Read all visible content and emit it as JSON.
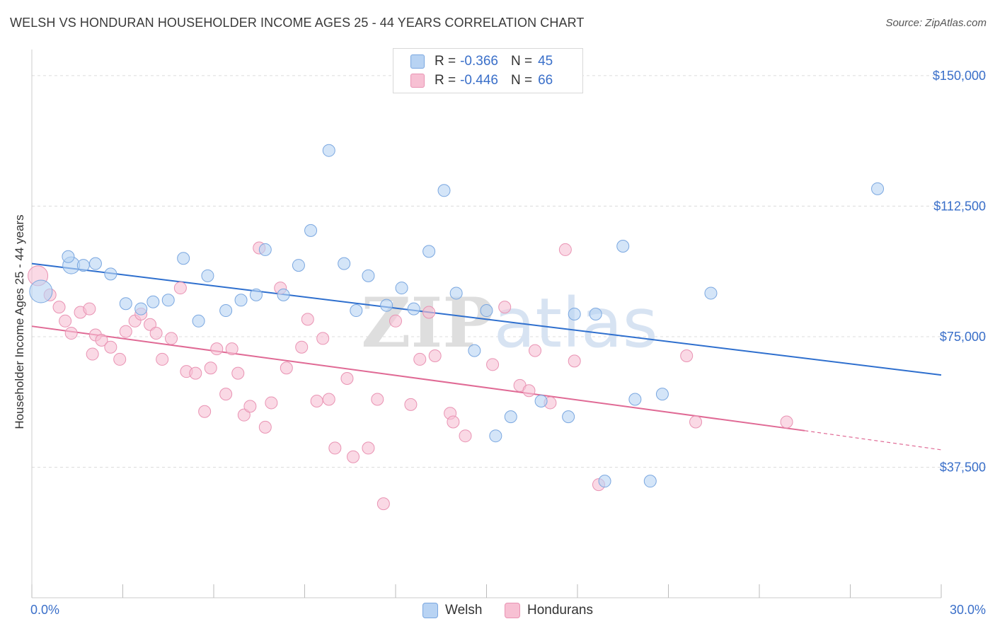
{
  "title": "WELSH VS HONDURAN HOUSEHOLDER INCOME AGES 25 - 44 YEARS CORRELATION CHART",
  "source": "Source: ZipAtlas.com",
  "colors": {
    "welsh_fill": "#b8d3f3",
    "welsh_stroke": "#7aa7e0",
    "welsh_line": "#2e6fce",
    "hond_fill": "#f7c0d3",
    "hond_stroke": "#e993b3",
    "hond_line": "#e06a95",
    "tick_text": "#3a6fc9"
  },
  "legend_top": {
    "welsh": {
      "r_label": "R =",
      "r_value": "-0.366",
      "n_label": "N =",
      "n_value": "45"
    },
    "hondurans": {
      "r_label": "R =",
      "r_value": "-0.446",
      "n_label": "N =",
      "n_value": "66"
    }
  },
  "legend_bottom": {
    "welsh": "Welsh",
    "hondurans": "Hondurans"
  },
  "chart_data": {
    "type": "scatter",
    "xlabel": "",
    "ylabel": "Householder Income Ages 25 - 44 years",
    "xlim": [
      0,
      30
    ],
    "ylim": [
      0,
      157500
    ],
    "x_tick_labels": [
      "0.0%",
      "30.0%"
    ],
    "y_ticks": [
      37500,
      75000,
      112500,
      150000
    ],
    "y_tick_labels": [
      "$37,500",
      "$75,000",
      "$112,500",
      "$150,000"
    ],
    "watermark": "ZIPatlas",
    "series": [
      {
        "name": "Welsh",
        "trend": {
          "x": [
            0,
            30
          ],
          "y": [
            96000,
            64000
          ]
        },
        "points": [
          [
            0.3,
            88000
          ],
          [
            1.3,
            95500
          ],
          [
            1.2,
            98000
          ],
          [
            1.7,
            95500
          ],
          [
            2.1,
            96000
          ],
          [
            2.6,
            93000
          ],
          [
            3.1,
            84500
          ],
          [
            3.6,
            83000
          ],
          [
            4.0,
            85000
          ],
          [
            4.5,
            85500
          ],
          [
            5.0,
            97500
          ],
          [
            5.5,
            79500
          ],
          [
            5.8,
            92500
          ],
          [
            6.4,
            82500
          ],
          [
            6.9,
            85500
          ],
          [
            7.4,
            87000
          ],
          [
            7.7,
            100000
          ],
          [
            8.3,
            87000
          ],
          [
            8.8,
            95500
          ],
          [
            9.2,
            105500
          ],
          [
            9.8,
            128500
          ],
          [
            10.3,
            96000
          ],
          [
            10.7,
            82500
          ],
          [
            11.1,
            92500
          ],
          [
            11.7,
            84000
          ],
          [
            12.2,
            89000
          ],
          [
            12.6,
            83000
          ],
          [
            13.1,
            99500
          ],
          [
            13.6,
            117000
          ],
          [
            14.0,
            87500
          ],
          [
            14.6,
            71000
          ],
          [
            15.0,
            82500
          ],
          [
            15.3,
            46500
          ],
          [
            15.8,
            52000
          ],
          [
            16.8,
            56500
          ],
          [
            17.7,
            52000
          ],
          [
            17.9,
            81500
          ],
          [
            18.6,
            81500
          ],
          [
            18.9,
            33500
          ],
          [
            19.5,
            101000
          ],
          [
            19.9,
            57000
          ],
          [
            20.4,
            33500
          ],
          [
            20.8,
            58500
          ],
          [
            22.4,
            87500
          ],
          [
            27.9,
            117500
          ]
        ]
      },
      {
        "name": "Hondurans",
        "trend": {
          "x": [
            0,
            25.5
          ],
          "y": [
            78000,
            48000
          ]
        },
        "trend_dashed": {
          "x": [
            25.5,
            30
          ],
          "y": [
            48000,
            42500
          ]
        },
        "points": [
          [
            0.2,
            92500
          ],
          [
            0.6,
            87000
          ],
          [
            0.9,
            83500
          ],
          [
            1.1,
            79500
          ],
          [
            1.3,
            76000
          ],
          [
            1.6,
            82000
          ],
          [
            1.9,
            83000
          ],
          [
            2.1,
            75500
          ],
          [
            2.3,
            74000
          ],
          [
            2.6,
            72000
          ],
          [
            2.9,
            68500
          ],
          [
            3.1,
            76500
          ],
          [
            3.4,
            79500
          ],
          [
            3.6,
            81500
          ],
          [
            3.9,
            78500
          ],
          [
            4.1,
            76000
          ],
          [
            4.3,
            68500
          ],
          [
            4.6,
            74500
          ],
          [
            4.9,
            89000
          ],
          [
            5.1,
            65000
          ],
          [
            5.4,
            64500
          ],
          [
            5.7,
            53500
          ],
          [
            5.9,
            66000
          ],
          [
            6.1,
            71500
          ],
          [
            6.4,
            58500
          ],
          [
            6.6,
            71500
          ],
          [
            6.8,
            64500
          ],
          [
            7.0,
            52500
          ],
          [
            7.2,
            55000
          ],
          [
            7.5,
            100500
          ],
          [
            7.7,
            49000
          ],
          [
            7.9,
            56000
          ],
          [
            8.2,
            89000
          ],
          [
            8.4,
            66000
          ],
          [
            8.9,
            72000
          ],
          [
            9.1,
            80000
          ],
          [
            9.4,
            56500
          ],
          [
            9.6,
            74500
          ],
          [
            9.8,
            57000
          ],
          [
            10.0,
            43000
          ],
          [
            10.4,
            63000
          ],
          [
            10.6,
            40500
          ],
          [
            11.1,
            43000
          ],
          [
            11.4,
            57000
          ],
          [
            11.6,
            27000
          ],
          [
            12.0,
            79500
          ],
          [
            12.5,
            55500
          ],
          [
            12.8,
            68500
          ],
          [
            13.1,
            82000
          ],
          [
            13.3,
            69500
          ],
          [
            13.8,
            53000
          ],
          [
            13.9,
            50500
          ],
          [
            14.3,
            46500
          ],
          [
            15.2,
            67000
          ],
          [
            15.6,
            83500
          ],
          [
            16.1,
            61000
          ],
          [
            16.4,
            59500
          ],
          [
            16.6,
            71000
          ],
          [
            17.1,
            56000
          ],
          [
            17.6,
            100000
          ],
          [
            17.9,
            68000
          ],
          [
            18.7,
            32500
          ],
          [
            21.6,
            69500
          ],
          [
            21.9,
            50500
          ],
          [
            24.9,
            50500
          ],
          [
            2.0,
            70000
          ]
        ]
      }
    ],
    "grid": true,
    "legend_position": "top-center"
  }
}
